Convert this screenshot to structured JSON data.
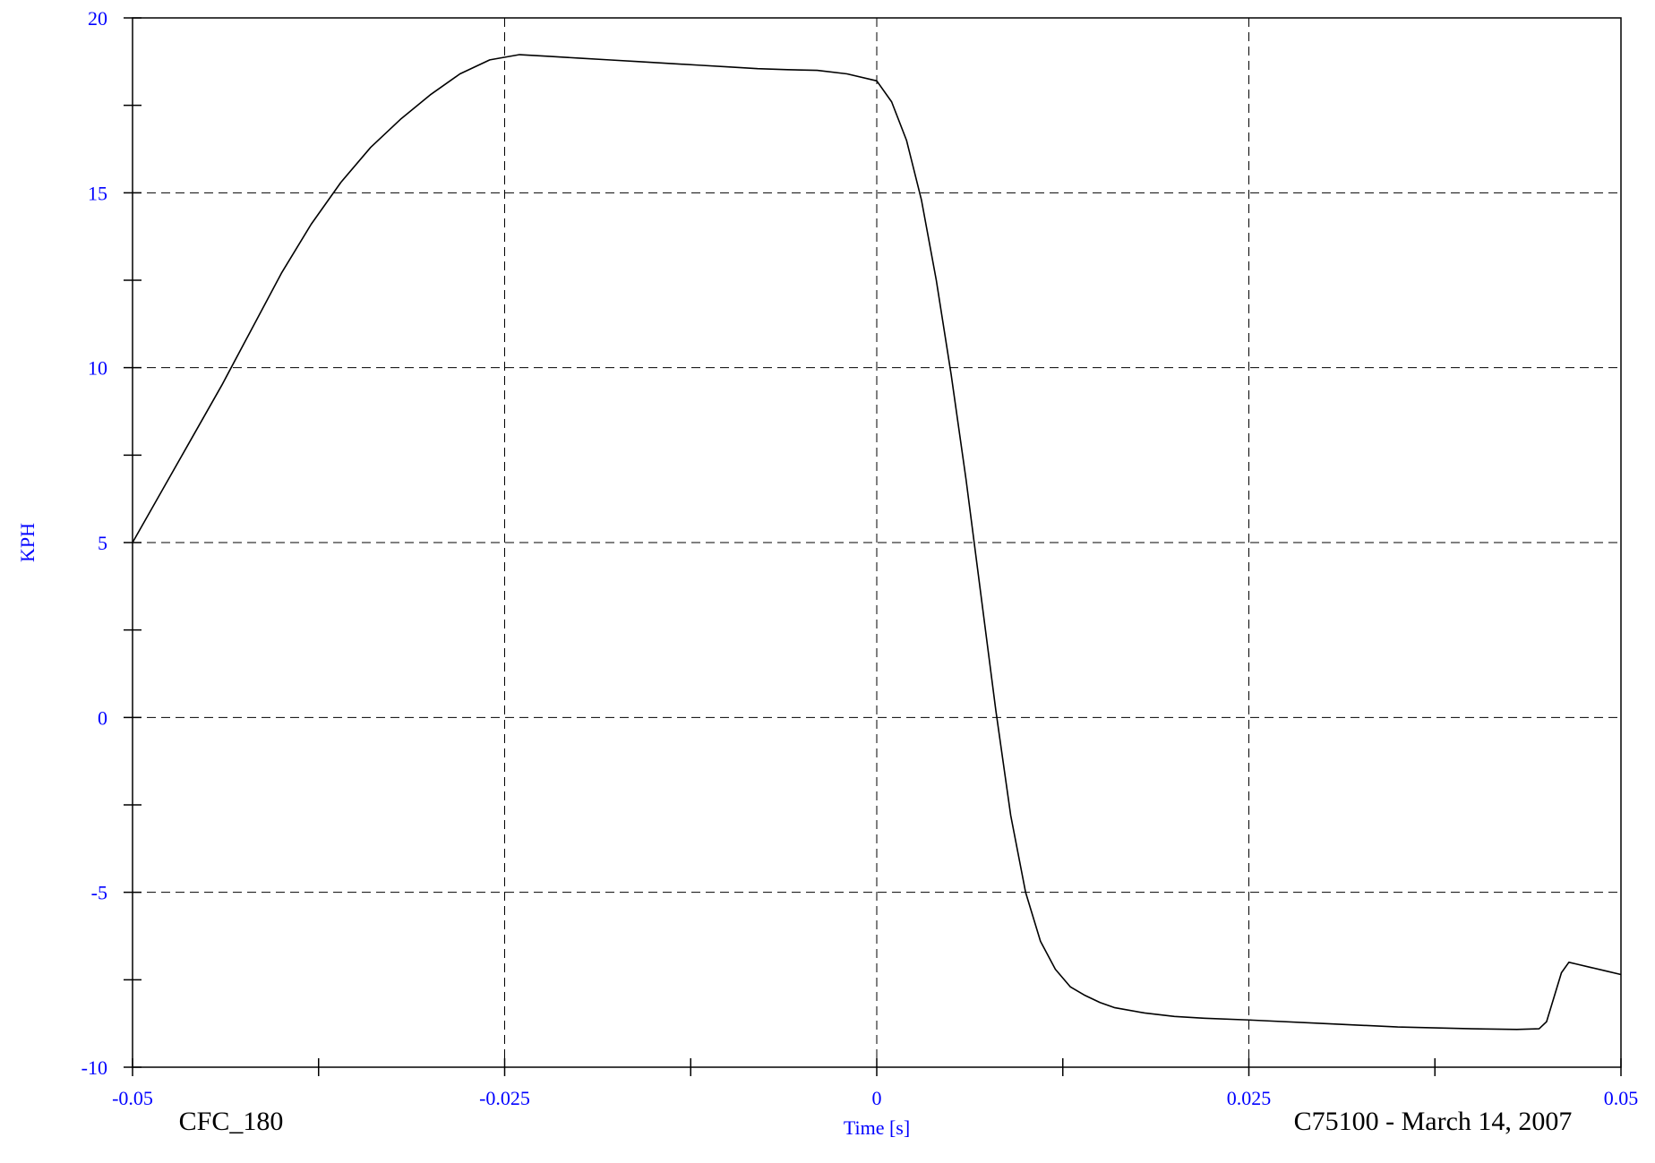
{
  "chart_data": {
    "type": "line",
    "title": "",
    "xlabel": "Time [s]",
    "ylabel": "KPH",
    "xlim": [
      -0.05,
      0.05
    ],
    "ylim": [
      -10,
      20
    ],
    "x_ticks": [
      -0.05,
      -0.025,
      0,
      0.025,
      0.05
    ],
    "x_tick_labels": [
      "-0.05",
      "-0.025",
      "0",
      "0.025",
      "0.05"
    ],
    "y_ticks": [
      -10,
      -5,
      0,
      5,
      10,
      15,
      20
    ],
    "y_tick_labels": [
      "-10",
      "-5",
      "0",
      "5",
      "10",
      "15",
      "20"
    ],
    "grid": true,
    "grid_style": "dashed",
    "legend": false,
    "series": [
      {
        "color": "#000000",
        "x": [
          -0.05,
          -0.048,
          -0.046,
          -0.044,
          -0.042,
          -0.04,
          -0.038,
          -0.036,
          -0.034,
          -0.032,
          -0.03,
          -0.028,
          -0.026,
          -0.024,
          -0.022,
          -0.02,
          -0.018,
          -0.016,
          -0.014,
          -0.012,
          -0.01,
          -0.008,
          -0.006,
          -0.004,
          -0.002,
          0.0,
          0.001,
          0.002,
          0.003,
          0.004,
          0.005,
          0.006,
          0.007,
          0.008,
          0.009,
          0.01,
          0.011,
          0.012,
          0.013,
          0.014,
          0.015,
          0.016,
          0.018,
          0.02,
          0.022,
          0.025,
          0.03,
          0.035,
          0.04,
          0.043,
          0.0445,
          0.045,
          0.0455,
          0.046,
          0.0465,
          0.047,
          0.048,
          0.049,
          0.05
        ],
        "y": [
          5.0,
          6.5,
          8.0,
          9.5,
          11.1,
          12.7,
          14.1,
          15.3,
          16.3,
          17.1,
          17.8,
          18.4,
          18.8,
          18.95,
          18.9,
          18.85,
          18.8,
          18.75,
          18.7,
          18.65,
          18.6,
          18.55,
          18.52,
          18.5,
          18.4,
          18.2,
          17.6,
          16.5,
          14.8,
          12.5,
          9.8,
          6.8,
          3.5,
          0.2,
          -2.8,
          -5.0,
          -6.4,
          -7.2,
          -7.7,
          -7.95,
          -8.15,
          -8.3,
          -8.45,
          -8.55,
          -8.6,
          -8.65,
          -8.75,
          -8.85,
          -8.9,
          -8.92,
          -8.9,
          -8.7,
          -8.0,
          -7.3,
          -7.0,
          -7.05,
          -7.15,
          -7.25,
          -7.35
        ]
      }
    ]
  },
  "footer": {
    "left_label": "CFC_180",
    "right_label": "C75100 - March 14, 2007"
  },
  "colors": {
    "axis_text": "#0000ff",
    "line": "#000000",
    "grid": "#000000",
    "frame": "#000000"
  }
}
